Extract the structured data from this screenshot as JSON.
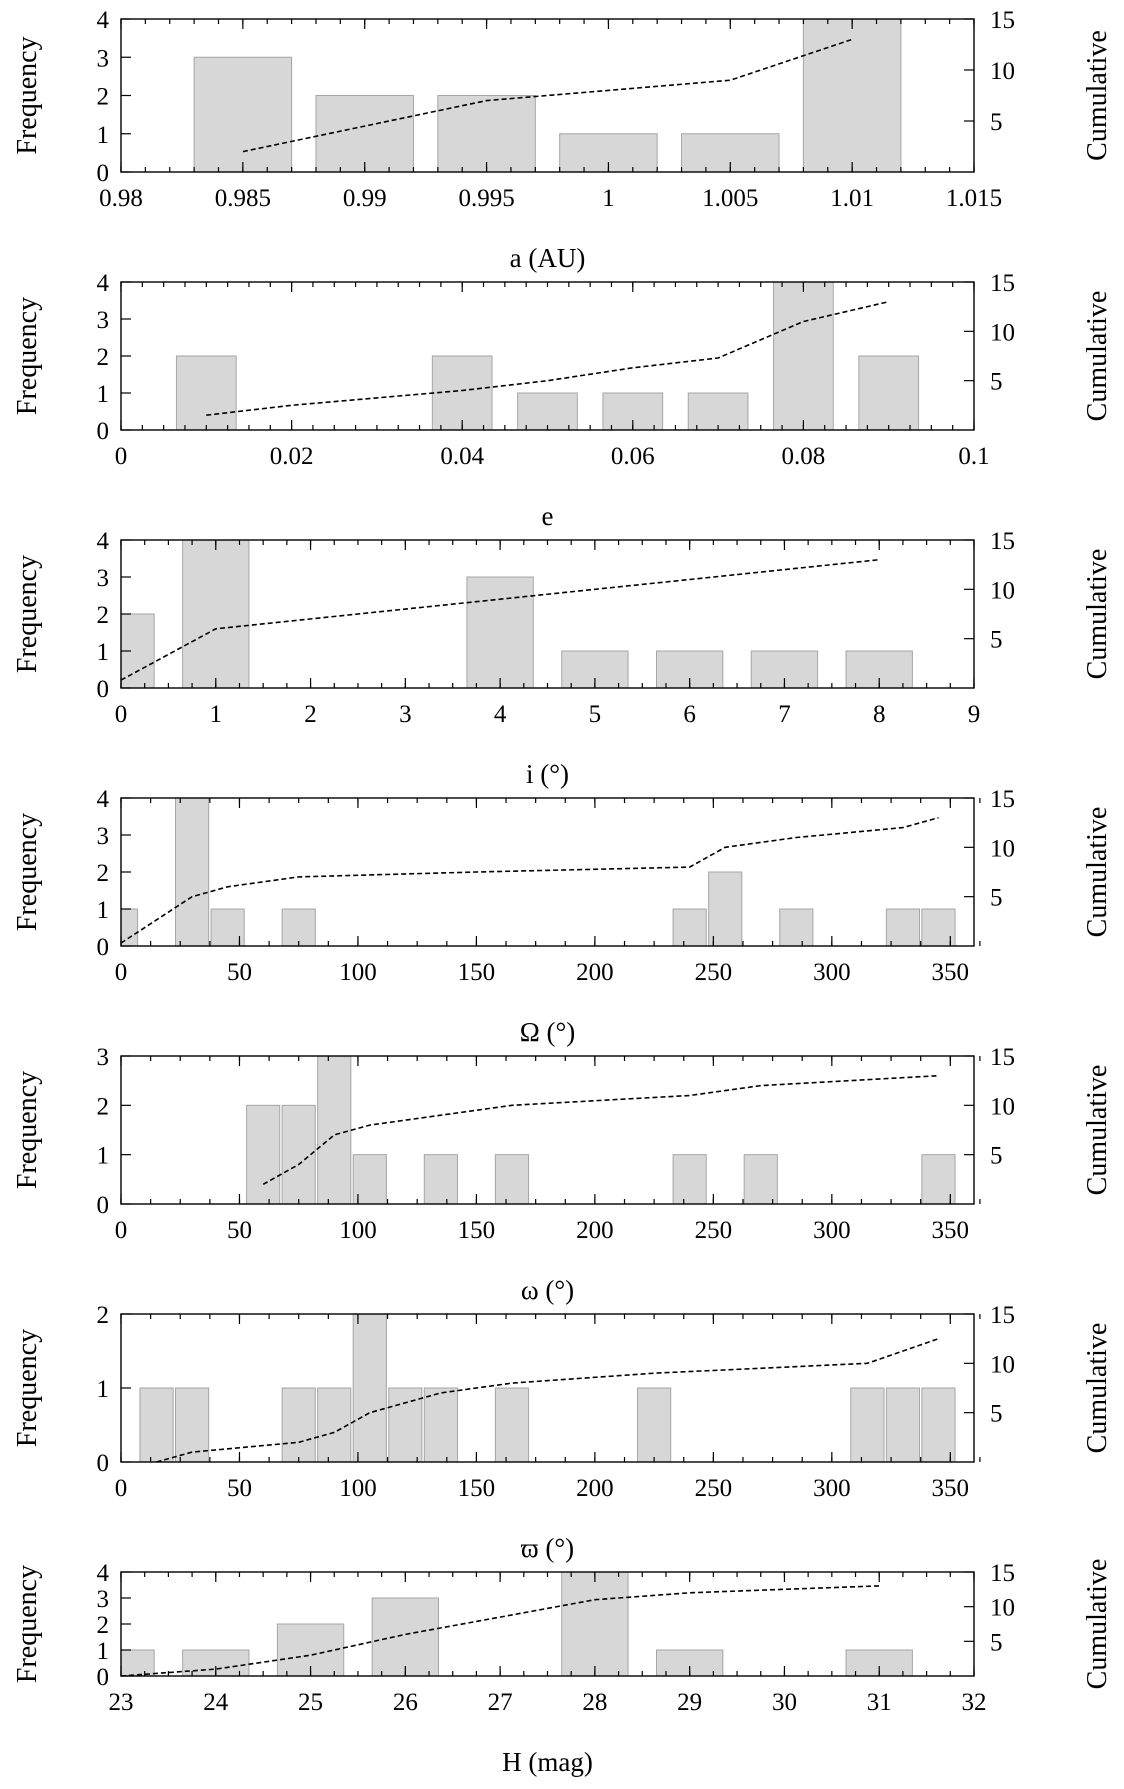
{
  "labels": {
    "frequency": "Frequency",
    "cumulative": "Cumulative"
  },
  "chart_data": [
    {
      "type": "bar",
      "xlabel": "a (AU)",
      "xlim": [
        0.98,
        1.015
      ],
      "xticks": [
        "0.98",
        "0.985",
        "0.99",
        "0.995",
        "1",
        "1.005",
        "1.01",
        "1.015"
      ],
      "xtick_values": [
        0.98,
        0.985,
        0.99,
        0.995,
        1,
        1.005,
        1.01,
        1.015
      ],
      "xminor": 0.001,
      "ylim": [
        0,
        4
      ],
      "yticks": [
        "0",
        "1",
        "2",
        "3",
        "4"
      ],
      "y2lim": [
        0,
        15
      ],
      "y2ticks": [
        "5",
        "10",
        "15"
      ],
      "bars": [
        {
          "x0": 0.983,
          "x1": 0.987,
          "value": 3
        },
        {
          "x0": 0.988,
          "x1": 0.992,
          "value": 2
        },
        {
          "x0": 0.993,
          "x1": 0.997,
          "value": 2
        },
        {
          "x0": 0.998,
          "x1": 1.002,
          "value": 1
        },
        {
          "x0": 1.003,
          "x1": 1.007,
          "value": 1
        },
        {
          "x0": 1.008,
          "x1": 1.012,
          "value": 4
        }
      ],
      "cumulative": [
        [
          0.985,
          2
        ],
        [
          0.99,
          4.5
        ],
        [
          0.995,
          7
        ],
        [
          1.0,
          8
        ],
        [
          1.005,
          9
        ],
        [
          1.01,
          13
        ]
      ]
    },
    {
      "type": "bar",
      "xlabel": "e",
      "xlim": [
        0,
        0.1
      ],
      "xticks": [
        "0",
        "0.02",
        "0.04",
        "0.06",
        "0.08",
        "0.1"
      ],
      "xtick_values": [
        0,
        0.02,
        0.04,
        0.06,
        0.08,
        0.1
      ],
      "xminor": 0.0025,
      "ylim": [
        0,
        4
      ],
      "yticks": [
        "0",
        "1",
        "2",
        "3",
        "4"
      ],
      "y2lim": [
        0,
        15
      ],
      "y2ticks": [
        "5",
        "10",
        "15"
      ],
      "bars": [
        {
          "x0": 0.0065,
          "x1": 0.0135,
          "value": 2
        },
        {
          "x0": 0.0365,
          "x1": 0.0435,
          "value": 2
        },
        {
          "x0": 0.0465,
          "x1": 0.0535,
          "value": 1
        },
        {
          "x0": 0.0565,
          "x1": 0.0635,
          "value": 1
        },
        {
          "x0": 0.0665,
          "x1": 0.0735,
          "value": 1
        },
        {
          "x0": 0.0765,
          "x1": 0.0835,
          "value": 4
        },
        {
          "x0": 0.0865,
          "x1": 0.0935,
          "value": 2
        }
      ],
      "cumulative": [
        [
          0.01,
          1.5
        ],
        [
          0.02,
          2.5
        ],
        [
          0.04,
          4
        ],
        [
          0.05,
          5
        ],
        [
          0.06,
          6.3
        ],
        [
          0.07,
          7.3
        ],
        [
          0.08,
          11
        ],
        [
          0.09,
          13
        ]
      ]
    },
    {
      "type": "bar",
      "xlabel": "i (°)",
      "xlim": [
        0,
        9
      ],
      "xticks": [
        "0",
        "1",
        "2",
        "3",
        "4",
        "5",
        "6",
        "7",
        "8",
        "9"
      ],
      "xtick_values": [
        0,
        1,
        2,
        3,
        4,
        5,
        6,
        7,
        8,
        9
      ],
      "xminor": 0.25,
      "ylim": [
        0,
        4
      ],
      "yticks": [
        "0",
        "1",
        "2",
        "3",
        "4"
      ],
      "y2lim": [
        0,
        15
      ],
      "y2ticks": [
        "5",
        "10",
        "15"
      ],
      "bars": [
        {
          "x0": 0,
          "x1": 0.35,
          "value": 2
        },
        {
          "x0": 0.65,
          "x1": 1.35,
          "value": 4
        },
        {
          "x0": 3.65,
          "x1": 4.35,
          "value": 3
        },
        {
          "x0": 4.65,
          "x1": 5.35,
          "value": 1
        },
        {
          "x0": 5.65,
          "x1": 6.35,
          "value": 1
        },
        {
          "x0": 6.65,
          "x1": 7.35,
          "value": 1
        },
        {
          "x0": 7.65,
          "x1": 8.35,
          "value": 1
        }
      ],
      "cumulative": [
        [
          0,
          0.8
        ],
        [
          1,
          6
        ],
        [
          4,
          9
        ],
        [
          5,
          10
        ],
        [
          6,
          11
        ],
        [
          7,
          12
        ],
        [
          8,
          13
        ]
      ]
    },
    {
      "type": "bar",
      "xlabel": "Ω (°)",
      "xlim": [
        0,
        360
      ],
      "xticks": [
        "0",
        "50",
        "100",
        "150",
        "200",
        "250",
        "300",
        "350"
      ],
      "xtick_values": [
        0,
        50,
        100,
        150,
        200,
        250,
        300,
        350
      ],
      "xminor": 12.5,
      "ylim": [
        0,
        4
      ],
      "yticks": [
        "0",
        "1",
        "2",
        "3",
        "4"
      ],
      "y2lim": [
        0,
        15
      ],
      "y2ticks": [
        "5",
        "10",
        "15"
      ],
      "bars": [
        {
          "x0": 0,
          "x1": 7,
          "value": 1
        },
        {
          "x0": 23,
          "x1": 37,
          "value": 4
        },
        {
          "x0": 38,
          "x1": 52,
          "value": 1
        },
        {
          "x0": 68,
          "x1": 82,
          "value": 1
        },
        {
          "x0": 233,
          "x1": 247,
          "value": 1
        },
        {
          "x0": 248,
          "x1": 262,
          "value": 2
        },
        {
          "x0": 278,
          "x1": 292,
          "value": 1
        },
        {
          "x0": 323,
          "x1": 337,
          "value": 1
        },
        {
          "x0": 338,
          "x1": 352,
          "value": 1
        }
      ],
      "cumulative": [
        [
          0,
          0.3
        ],
        [
          30,
          5
        ],
        [
          45,
          6
        ],
        [
          75,
          7
        ],
        [
          150,
          7.5
        ],
        [
          240,
          8
        ],
        [
          255,
          10
        ],
        [
          285,
          11
        ],
        [
          330,
          12
        ],
        [
          345,
          13
        ]
      ]
    },
    {
      "type": "bar",
      "xlabel": "ω (°)",
      "xlim": [
        0,
        360
      ],
      "xticks": [
        "0",
        "50",
        "100",
        "150",
        "200",
        "250",
        "300",
        "350"
      ],
      "xtick_values": [
        0,
        50,
        100,
        150,
        200,
        250,
        300,
        350
      ],
      "xminor": 12.5,
      "ylim": [
        0,
        3
      ],
      "yticks": [
        "0",
        "1",
        "2",
        "3"
      ],
      "y2lim": [
        0,
        15
      ],
      "y2ticks": [
        "5",
        "10",
        "15"
      ],
      "bars": [
        {
          "x0": 53,
          "x1": 67,
          "value": 2
        },
        {
          "x0": 68,
          "x1": 82,
          "value": 2
        },
        {
          "x0": 83,
          "x1": 97,
          "value": 3
        },
        {
          "x0": 98,
          "x1": 112,
          "value": 1
        },
        {
          "x0": 128,
          "x1": 142,
          "value": 1
        },
        {
          "x0": 158,
          "x1": 172,
          "value": 1
        },
        {
          "x0": 233,
          "x1": 247,
          "value": 1
        },
        {
          "x0": 263,
          "x1": 277,
          "value": 1
        },
        {
          "x0": 338,
          "x1": 352,
          "value": 1
        }
      ],
      "cumulative": [
        [
          60,
          2
        ],
        [
          75,
          4
        ],
        [
          90,
          7
        ],
        [
          105,
          8
        ],
        [
          135,
          9
        ],
        [
          165,
          10
        ],
        [
          240,
          11
        ],
        [
          270,
          12
        ],
        [
          345,
          13
        ]
      ]
    },
    {
      "type": "bar",
      "xlabel": "ϖ (°)",
      "xlim": [
        0,
        360
      ],
      "xticks": [
        "0",
        "50",
        "100",
        "150",
        "200",
        "250",
        "300",
        "350"
      ],
      "xtick_values": [
        0,
        50,
        100,
        150,
        200,
        250,
        300,
        350
      ],
      "xminor": 12.5,
      "ylim": [
        0,
        2
      ],
      "yticks": [
        "0",
        "1",
        "2"
      ],
      "y2lim": [
        0,
        15
      ],
      "y2ticks": [
        "5",
        "10",
        "15"
      ],
      "bars": [
        {
          "x0": 8,
          "x1": 22,
          "value": 1
        },
        {
          "x0": 23,
          "x1": 37,
          "value": 1
        },
        {
          "x0": 68,
          "x1": 82,
          "value": 1
        },
        {
          "x0": 83,
          "x1": 97,
          "value": 1
        },
        {
          "x0": 98,
          "x1": 112,
          "value": 2
        },
        {
          "x0": 113,
          "x1": 127,
          "value": 1
        },
        {
          "x0": 128,
          "x1": 142,
          "value": 1
        },
        {
          "x0": 158,
          "x1": 172,
          "value": 1
        },
        {
          "x0": 218,
          "x1": 232,
          "value": 1
        },
        {
          "x0": 308,
          "x1": 322,
          "value": 1
        },
        {
          "x0": 323,
          "x1": 337,
          "value": 1
        },
        {
          "x0": 338,
          "x1": 352,
          "value": 1
        }
      ],
      "cumulative": [
        [
          15,
          0
        ],
        [
          30,
          1
        ],
        [
          75,
          2
        ],
        [
          90,
          3
        ],
        [
          105,
          5
        ],
        [
          120,
          6
        ],
        [
          135,
          7
        ],
        [
          165,
          8
        ],
        [
          225,
          9
        ],
        [
          315,
          10
        ],
        [
          345,
          12.5
        ]
      ]
    },
    {
      "type": "bar",
      "xlabel": "H (mag)",
      "xlim": [
        23,
        32
      ],
      "xticks": [
        "23",
        "24",
        "25",
        "26",
        "27",
        "28",
        "29",
        "30",
        "31",
        "32"
      ],
      "xtick_values": [
        23,
        24,
        25,
        26,
        27,
        28,
        29,
        30,
        31,
        32
      ],
      "xminor": 0.25,
      "ylim": [
        0,
        4
      ],
      "yticks": [
        "0",
        "1",
        "2",
        "3",
        "4"
      ],
      "y2lim": [
        0,
        15
      ],
      "y2ticks": [
        "5",
        "10",
        "15"
      ],
      "bars": [
        {
          "x0": 23,
          "x1": 23.35,
          "value": 1
        },
        {
          "x0": 23.65,
          "x1": 24.35,
          "value": 1
        },
        {
          "x0": 24.65,
          "x1": 25.35,
          "value": 2
        },
        {
          "x0": 25.65,
          "x1": 26.35,
          "value": 3
        },
        {
          "x0": 27.65,
          "x1": 28.35,
          "value": 4
        },
        {
          "x0": 28.65,
          "x1": 29.35,
          "value": 1
        },
        {
          "x0": 30.65,
          "x1": 31.35,
          "value": 1
        }
      ],
      "cumulative": [
        [
          23,
          0
        ],
        [
          24,
          1
        ],
        [
          25,
          3
        ],
        [
          26,
          6
        ],
        [
          27,
          8.5
        ],
        [
          28,
          11
        ],
        [
          29,
          12
        ],
        [
          30,
          12.5
        ],
        [
          31,
          13
        ]
      ]
    }
  ]
}
